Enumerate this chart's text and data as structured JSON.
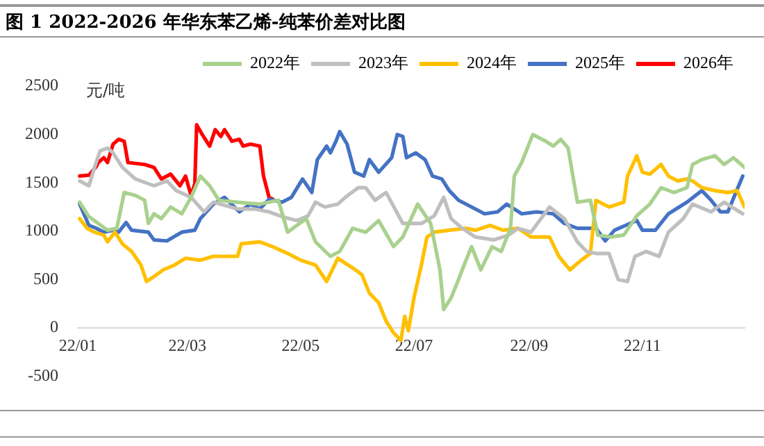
{
  "chart_data": {
    "type": "line",
    "title": "图 1 2022-2026 年华东苯乙烯-纯苯价差对比图",
    "ylabel": "元/吨",
    "xlim": [
      "2022-01-01",
      "2022-12-26"
    ],
    "xticks": [
      {
        "value": "2022-01-01",
        "label": "22/01"
      },
      {
        "value": "2022-03-01",
        "label": "22/03"
      },
      {
        "value": "2022-05-01",
        "label": "22/05"
      },
      {
        "value": "2022-07-01",
        "label": "22/07"
      },
      {
        "value": "2022-09-01",
        "label": "22/09"
      },
      {
        "value": "2022-11-01",
        "label": "22/11"
      }
    ],
    "ylim": [
      -500,
      2500
    ],
    "yticks": [
      -500,
      0,
      500,
      1000,
      1500,
      2000,
      2500
    ],
    "grid": false,
    "legend": "top right",
    "marker": "none",
    "line_style": "solid",
    "series": [
      {
        "name": "2022年",
        "color": "#a9d18e",
        "x": [
          "2022-01-02",
          "2022-01-07",
          "2022-01-12",
          "2022-01-17",
          "2022-01-22",
          "2022-01-26",
          "2022-02-01",
          "2022-02-06",
          "2022-02-08",
          "2022-02-11",
          "2022-02-15",
          "2022-02-20",
          "2022-02-26",
          "2022-03-03",
          "2022-03-08",
          "2022-03-13",
          "2022-03-18",
          "2022-03-28",
          "2022-04-09",
          "2022-04-19",
          "2022-04-24",
          "2022-04-29",
          "2022-05-04",
          "2022-05-09",
          "2022-05-17",
          "2022-05-22",
          "2022-05-29",
          "2022-06-05",
          "2022-06-12",
          "2022-06-20",
          "2022-06-25",
          "2022-07-03",
          "2022-07-10",
          "2022-07-15",
          "2022-07-17",
          "2022-07-21",
          "2022-07-25",
          "2022-07-28",
          "2022-08-01",
          "2022-08-06",
          "2022-08-12",
          "2022-08-17",
          "2022-08-22",
          "2022-08-24",
          "2022-08-28",
          "2022-09-03",
          "2022-09-10",
          "2022-09-14",
          "2022-09-18",
          "2022-09-22",
          "2022-09-27",
          "2022-10-04",
          "2022-10-08",
          "2022-10-15",
          "2022-10-22",
          "2022-10-29",
          "2022-11-05",
          "2022-11-11",
          "2022-11-18",
          "2022-11-25",
          "2022-11-28",
          "2022-12-03",
          "2022-12-10",
          "2022-12-15",
          "2022-12-20",
          "2022-12-26"
        ],
        "values": [
          1300,
          1150,
          1080,
          1010,
          1030,
          1400,
          1370,
          1320,
          1080,
          1180,
          1130,
          1250,
          1180,
          1350,
          1570,
          1470,
          1320,
          1300,
          1280,
          1320,
          990,
          1060,
          1130,
          890,
          740,
          790,
          1030,
          990,
          1110,
          840,
          940,
          1280,
          1080,
          600,
          190,
          310,
          500,
          650,
          840,
          600,
          840,
          790,
          1030,
          1570,
          1710,
          2000,
          1930,
          1880,
          1950,
          1860,
          1300,
          1320,
          960,
          940,
          960,
          1160,
          1280,
          1450,
          1400,
          1450,
          1690,
          1740,
          1780,
          1690,
          1760,
          1660
        ]
      },
      {
        "name": "2023年",
        "color": "#bfbfbf",
        "x": [
          "2022-01-02",
          "2022-01-07",
          "2022-01-10",
          "2022-01-13",
          "2022-01-17",
          "2022-01-20",
          "2022-01-25",
          "2022-02-01",
          "2022-02-11",
          "2022-02-18",
          "2022-02-23",
          "2022-03-03",
          "2022-03-10",
          "2022-03-15",
          "2022-03-28",
          "2022-04-06",
          "2022-04-14",
          "2022-04-21",
          "2022-04-29",
          "2022-05-05",
          "2022-05-09",
          "2022-05-14",
          "2022-05-21",
          "2022-05-25",
          "2022-06-01",
          "2022-06-05",
          "2022-06-10",
          "2022-06-16",
          "2022-06-25",
          "2022-07-05",
          "2022-07-12",
          "2022-07-17",
          "2022-07-21",
          "2022-07-27",
          "2022-08-03",
          "2022-08-13",
          "2022-08-21",
          "2022-08-26",
          "2022-09-02",
          "2022-09-12",
          "2022-09-20",
          "2022-09-27",
          "2022-10-02",
          "2022-10-07",
          "2022-10-14",
          "2022-10-19",
          "2022-10-24",
          "2022-10-28",
          "2022-11-03",
          "2022-11-10",
          "2022-11-15",
          "2022-11-23",
          "2022-11-28",
          "2022-12-08",
          "2022-12-15",
          "2022-12-25"
        ],
        "values": [
          1520,
          1470,
          1660,
          1830,
          1860,
          1810,
          1660,
          1540,
          1470,
          1520,
          1420,
          1350,
          1200,
          1300,
          1230,
          1230,
          1200,
          1150,
          1110,
          1160,
          1300,
          1250,
          1280,
          1350,
          1450,
          1450,
          1320,
          1400,
          1080,
          1080,
          1160,
          1350,
          1130,
          1030,
          940,
          910,
          960,
          1030,
          990,
          1250,
          1130,
          890,
          790,
          770,
          770,
          500,
          480,
          740,
          790,
          740,
          990,
          1130,
          1280,
          1200,
          1300,
          1180
        ]
      },
      {
        "name": "2024年",
        "color": "#ffc000",
        "x": [
          "2022-01-02",
          "2022-01-06",
          "2022-01-10",
          "2022-01-15",
          "2022-01-17",
          "2022-01-21",
          "2022-01-25",
          "2022-01-30",
          "2022-02-04",
          "2022-02-07",
          "2022-02-11",
          "2022-02-16",
          "2022-02-22",
          "2022-02-28",
          "2022-03-08",
          "2022-03-15",
          "2022-03-28",
          "2022-03-30",
          "2022-04-09",
          "2022-04-16",
          "2022-04-24",
          "2022-05-01",
          "2022-05-09",
          "2022-05-15",
          "2022-05-21",
          "2022-05-29",
          "2022-06-03",
          "2022-06-07",
          "2022-06-12",
          "2022-06-16",
          "2022-06-20",
          "2022-06-24",
          "2022-06-26",
          "2022-06-28",
          "2022-07-01",
          "2022-07-05",
          "2022-07-08",
          "2022-07-12",
          "2022-07-20",
          "2022-07-29",
          "2022-08-03",
          "2022-08-11",
          "2022-08-18",
          "2022-08-26",
          "2022-09-02",
          "2022-09-12",
          "2022-09-17",
          "2022-09-23",
          "2022-09-29",
          "2022-10-04",
          "2022-10-07",
          "2022-10-14",
          "2022-10-22",
          "2022-10-24",
          "2022-10-29",
          "2022-11-01",
          "2022-11-05",
          "2022-11-11",
          "2022-11-15",
          "2022-11-20",
          "2022-11-25",
          "2022-11-28",
          "2022-12-03",
          "2022-12-10",
          "2022-12-17",
          "2022-12-22",
          "2022-12-26"
        ],
        "values": [
          1130,
          1030,
          990,
          960,
          890,
          990,
          870,
          790,
          650,
          480,
          530,
          600,
          650,
          720,
          700,
          740,
          740,
          870,
          890,
          840,
          770,
          700,
          650,
          480,
          720,
          620,
          550,
          360,
          260,
          70,
          -50,
          -130,
          120,
          -30,
          310,
          650,
          940,
          990,
          1010,
          1030,
          1010,
          1060,
          1010,
          1030,
          940,
          940,
          740,
          600,
          700,
          770,
          1320,
          1250,
          1300,
          1570,
          1780,
          1610,
          1590,
          1690,
          1570,
          1520,
          1540,
          1520,
          1450,
          1420,
          1400,
          1420,
          1250
        ]
      },
      {
        "name": "2025年",
        "color": "#4472c4",
        "x": [
          "2022-01-02",
          "2022-01-07",
          "2022-01-11",
          "2022-01-15",
          "2022-01-20",
          "2022-01-23",
          "2022-01-27",
          "2022-01-30",
          "2022-02-08",
          "2022-02-11",
          "2022-02-18",
          "2022-02-26",
          "2022-03-05",
          "2022-03-08",
          "2022-03-15",
          "2022-03-21",
          "2022-03-29",
          "2022-04-04",
          "2022-04-09",
          "2022-04-14",
          "2022-04-21",
          "2022-04-26",
          "2022-05-02",
          "2022-05-07",
          "2022-05-10",
          "2022-05-15",
          "2022-05-17",
          "2022-05-20",
          "2022-05-22",
          "2022-05-26",
          "2022-05-30",
          "2022-06-04",
          "2022-06-07",
          "2022-06-12",
          "2022-06-19",
          "2022-06-22",
          "2022-06-25",
          "2022-06-27",
          "2022-07-02",
          "2022-07-07",
          "2022-07-11",
          "2022-07-16",
          "2022-07-20",
          "2022-07-25",
          "2022-08-03",
          "2022-08-08",
          "2022-08-15",
          "2022-08-20",
          "2022-08-28",
          "2022-09-05",
          "2022-09-14",
          "2022-09-20",
          "2022-09-27",
          "2022-10-07",
          "2022-10-12",
          "2022-10-17",
          "2022-10-23",
          "2022-10-29",
          "2022-11-01",
          "2022-11-08",
          "2022-11-15",
          "2022-11-25",
          "2022-12-03",
          "2022-12-08",
          "2022-12-13",
          "2022-12-17",
          "2022-12-25"
        ],
        "values": [
          1280,
          1060,
          1030,
          990,
          1010,
          990,
          1090,
          1010,
          990,
          910,
          900,
          990,
          1010,
          1130,
          1280,
          1350,
          1200,
          1280,
          1230,
          1330,
          1300,
          1350,
          1540,
          1400,
          1740,
          1880,
          1810,
          1930,
          2030,
          1900,
          1610,
          1570,
          1740,
          1610,
          1760,
          2000,
          1980,
          1760,
          1810,
          1740,
          1570,
          1540,
          1420,
          1320,
          1230,
          1180,
          1200,
          1280,
          1180,
          1200,
          1180,
          1080,
          1030,
          1030,
          900,
          1010,
          1060,
          1110,
          1010,
          1010,
          1180,
          1300,
          1420,
          1320,
          1200,
          1200,
          1570
        ]
      },
      {
        "name": "2026年",
        "color": "#ff0000",
        "x": [
          "2022-01-02",
          "2022-01-07",
          "2022-01-11",
          "2022-01-12",
          "2022-01-15",
          "2022-01-17",
          "2022-01-20",
          "2022-01-23",
          "2022-01-26",
          "2022-01-28",
          "2022-02-06",
          "2022-02-11",
          "2022-02-15",
          "2022-02-20",
          "2022-02-25",
          "2022-02-28",
          "2022-03-03",
          "2022-03-05",
          "2022-03-06",
          "2022-03-09",
          "2022-03-13",
          "2022-03-16",
          "2022-03-19",
          "2022-03-21",
          "2022-03-25",
          "2022-03-29",
          "2022-03-31",
          "2022-04-04",
          "2022-04-09",
          "2022-04-11",
          "2022-04-14",
          "2022-04-16"
        ],
        "values": [
          1570,
          1580,
          1670,
          1710,
          1760,
          1710,
          1900,
          1950,
          1930,
          1710,
          1690,
          1660,
          1540,
          1590,
          1470,
          1570,
          1370,
          1490,
          2100,
          2000,
          1880,
          2050,
          1980,
          2050,
          1930,
          1950,
          1880,
          1900,
          1880,
          1570,
          1350,
          1330
        ]
      }
    ]
  }
}
